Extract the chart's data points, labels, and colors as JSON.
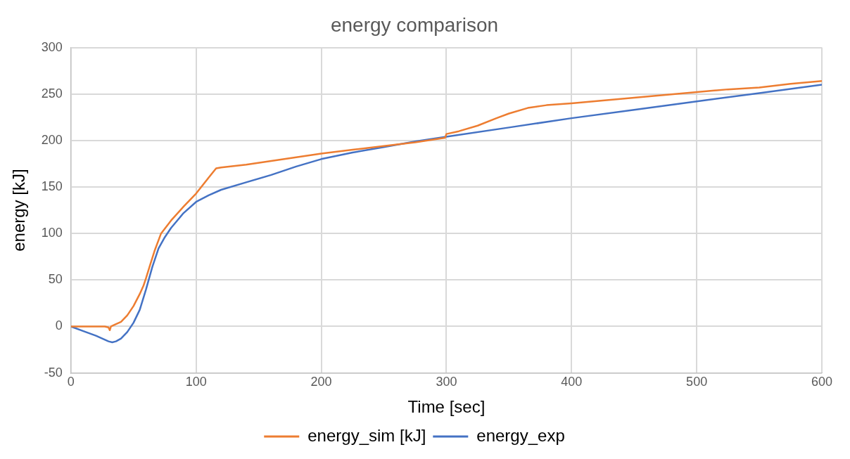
{
  "chart_data": {
    "type": "line",
    "title": "energy comparison",
    "xlabel": "Time [sec]",
    "ylabel": "energy [kJ]",
    "xlim": [
      0,
      600
    ],
    "xticks": [
      0,
      100,
      200,
      300,
      400,
      500,
      600
    ],
    "ylim": [
      -50,
      300
    ],
    "yticks": [
      -50,
      0,
      50,
      100,
      150,
      200,
      250,
      300
    ],
    "grid": true,
    "legend": "bottom",
    "marker": "none",
    "line_style": "solid",
    "series": [
      {
        "name": "energy_sim [kJ]",
        "color": "#ed7d31",
        "x": [
          0,
          27,
          30,
          31,
          32,
          35,
          40,
          45,
          50,
          55,
          58,
          60,
          63,
          67,
          72,
          80,
          90,
          100,
          110,
          116,
          120,
          140,
          160,
          180,
          200,
          225,
          250,
          275,
          299,
          300,
          310,
          325,
          340,
          350,
          365,
          380,
          400,
          425,
          450,
          475,
          500,
          525,
          550,
          575,
          600
        ],
        "values": [
          0,
          0,
          -1,
          -4,
          0,
          2,
          5,
          12,
          22,
          35,
          44,
          52,
          65,
          82,
          100,
          114,
          129,
          143,
          160,
          170,
          171,
          174,
          178,
          182,
          186,
          190,
          194,
          198,
          203,
          207,
          210,
          216,
          224,
          229,
          235,
          238,
          240,
          243,
          246,
          249,
          252,
          255,
          257,
          261,
          264
        ]
      },
      {
        "name": "energy_exp",
        "color": "#4472c4",
        "x": [
          0,
          10,
          20,
          30,
          33,
          36,
          40,
          45,
          50,
          55,
          60,
          65,
          70,
          75,
          80,
          90,
          100,
          110,
          120,
          140,
          160,
          180,
          200,
          225,
          250,
          275,
          300,
          350,
          400,
          450,
          500,
          550,
          600
        ],
        "values": [
          0,
          -5,
          -10,
          -16,
          -17,
          -16,
          -13,
          -6,
          4,
          18,
          40,
          64,
          84,
          96,
          106,
          122,
          134,
          141,
          147,
          155,
          163,
          172,
          180,
          187,
          193,
          199,
          204,
          214,
          224,
          233,
          242,
          251,
          260
        ]
      }
    ]
  }
}
